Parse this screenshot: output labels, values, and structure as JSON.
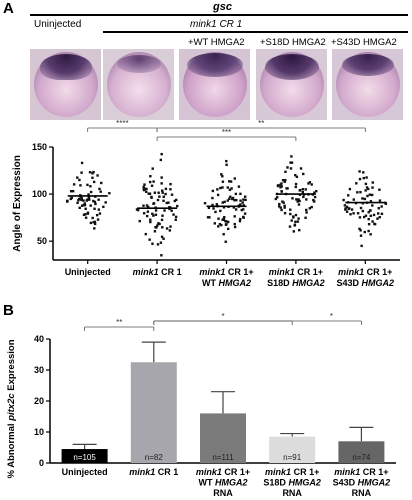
{
  "panel_a": {
    "letter": "A",
    "gene": "gsc",
    "uninjected": "Uninjected",
    "cr1": "mink1 CR 1",
    "conditions": [
      "+WT HMGA2",
      "+S18D HMGA2",
      "+S43D HMGA2"
    ]
  },
  "panel_b": {
    "letter": "B"
  },
  "chart_data": [
    {
      "type": "scatter",
      "ylabel": "Angle of Expression",
      "ylim": [
        30,
        150
      ],
      "yticks": [
        50,
        100,
        150
      ],
      "categories": [
        "Uninjected",
        "mink1 CR 1",
        "mink1 CR 1+\nWT HMGA2",
        "mink1 CR 1+\nS18D HMGA2",
        "mink1 CR 1+\nS43D HMGA2"
      ],
      "medians": [
        98,
        85,
        87,
        100,
        91
      ],
      "point_counts": [
        70,
        85,
        80,
        82,
        72
      ],
      "ranges": [
        [
          55,
          145
        ],
        [
          35,
          148
        ],
        [
          45,
          135
        ],
        [
          55,
          140
        ],
        [
          45,
          128
        ]
      ],
      "significance": [
        {
          "from": 0,
          "to": 1,
          "label": "****"
        },
        {
          "from": 1,
          "to": 3,
          "label": "***"
        },
        {
          "from": 1,
          "to": 4,
          "label": "**"
        }
      ]
    },
    {
      "type": "bar",
      "ylabel": "% Abnormal pitx2c Expression",
      "ylim": [
        0,
        40
      ],
      "yticks": [
        0,
        10,
        20,
        30,
        40
      ],
      "categories": [
        "Uninjected",
        "mink1 CR 1",
        "mink1 CR 1+\nWT HMGA2\nRNA",
        "mink1 CR 1+\nS18D HMGA2\nRNA",
        "mink1 CR 1+\nS43D HMGA2\nRNA"
      ],
      "values": [
        4.5,
        32.5,
        16,
        8.5,
        7
      ],
      "errors": [
        1.5,
        6.5,
        7,
        1,
        4.5
      ],
      "counts": [
        "n=105",
        "n=82",
        "n=111",
        "n=91",
        "n=74"
      ],
      "colors": [
        "#000000",
        "#a6a6ac",
        "#7b7b7b",
        "#dcdcdc",
        "#666666"
      ],
      "significance": [
        {
          "from": 0,
          "to": 1,
          "label": "**"
        },
        {
          "from": 1,
          "to": 3,
          "label": "*"
        },
        {
          "from": 1,
          "to": 4,
          "label": "*"
        }
      ]
    }
  ]
}
